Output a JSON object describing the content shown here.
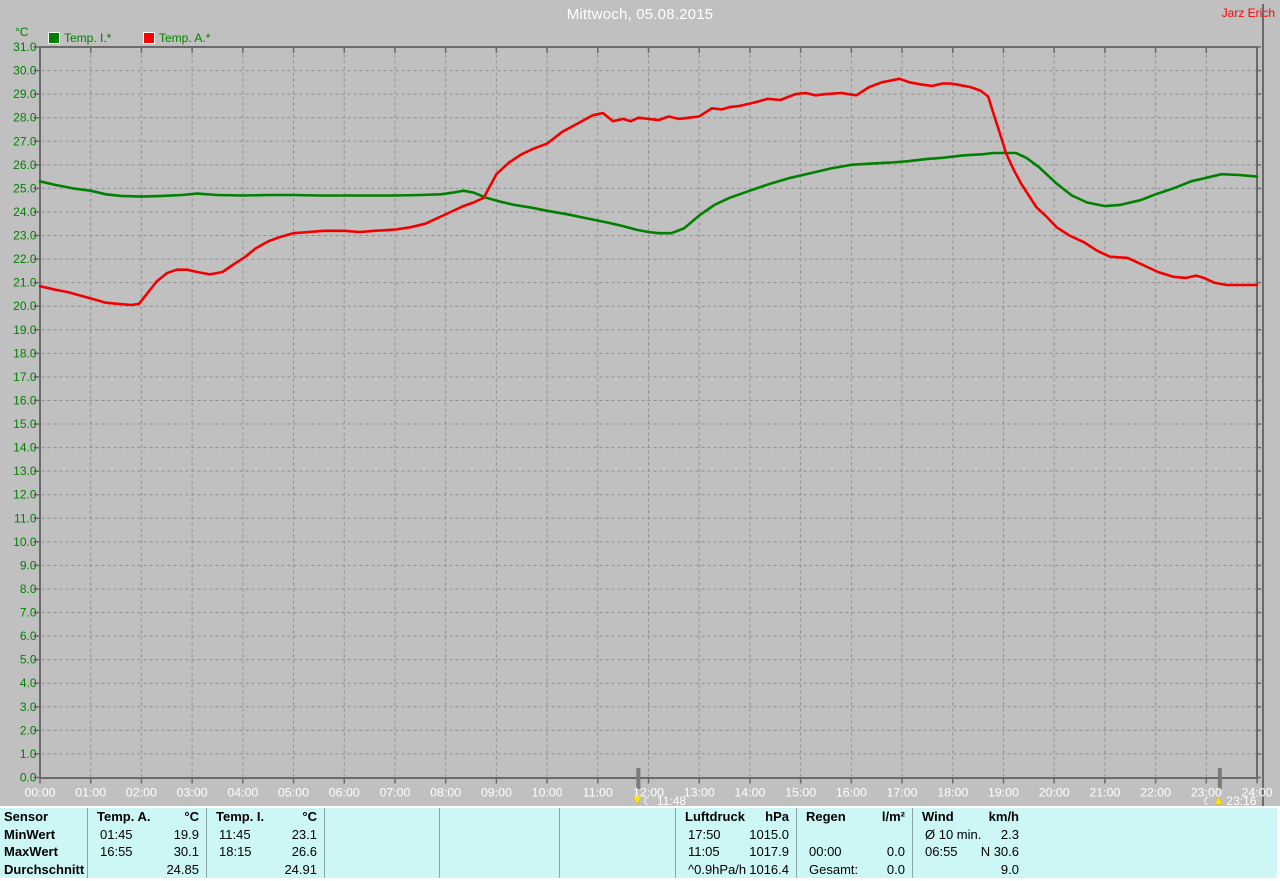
{
  "header": {
    "title": "Mittwoch, 05.08.2015",
    "author": "Jarz Erich"
  },
  "legend": {
    "unit": "°C",
    "items": [
      {
        "label": "Temp. I.*",
        "color": "#008000"
      },
      {
        "label": "Temp. A.*",
        "color": "#ff0000"
      }
    ]
  },
  "markers": [
    {
      "time": "11:48",
      "hour": 11.8,
      "icon": "moon-down"
    },
    {
      "time": "23:16",
      "hour": 23.267,
      "icon": "moon-up"
    }
  ],
  "colors": {
    "background": "#c0c0c0",
    "grid": "#8f8f8f",
    "frame": "#6a6a6a",
    "y_label": "#008000",
    "x_label": "#ffffff",
    "marker_bar": "#7a7a7a",
    "table_bg": "#cdf6f6",
    "table_divider": "#8aa4a4",
    "series_temp_i": "#008000",
    "series_temp_a": "#f20000",
    "marker_yellow": "#ffe400"
  },
  "chart_data": {
    "type": "line",
    "title": "Mittwoch, 05.08.2015",
    "ylabel": "°C",
    "ylim": [
      0.0,
      31.0
    ],
    "xlim_hours": [
      0,
      24
    ],
    "grid": true,
    "y_ticks": [
      0,
      1,
      2,
      3,
      4,
      5,
      6,
      7,
      8,
      9,
      10,
      11,
      12,
      13,
      14,
      15,
      16,
      17,
      18,
      19,
      20,
      21,
      22,
      23,
      24,
      25,
      26,
      27,
      28,
      29,
      30,
      31
    ],
    "y_tick_format_decimals": 1,
    "x_tick_labels": [
      "00:00",
      "01:00",
      "02:00",
      "03:00",
      "04:00",
      "05:00",
      "06:00",
      "07:00",
      "08:00",
      "09:00",
      "10:00",
      "11:00",
      "12:00",
      "13:00",
      "14:00",
      "15:00",
      "16:00",
      "17:00",
      "18:00",
      "19:00",
      "20:00",
      "21:00",
      "22:00",
      "23:00",
      "24:00"
    ],
    "series": [
      {
        "name": "Temp. I.*",
        "color": "#008000",
        "points": [
          [
            0,
            25.3
          ],
          [
            0.3,
            25.15
          ],
          [
            0.65,
            25.0
          ],
          [
            1,
            24.9
          ],
          [
            1.3,
            24.75
          ],
          [
            1.6,
            24.68
          ],
          [
            2,
            24.65
          ],
          [
            2.4,
            24.68
          ],
          [
            2.8,
            24.72
          ],
          [
            3.1,
            24.78
          ],
          [
            3.5,
            24.72
          ],
          [
            4,
            24.7
          ],
          [
            4.5,
            24.72
          ],
          [
            5,
            24.72
          ],
          [
            5.5,
            24.7
          ],
          [
            6,
            24.7
          ],
          [
            6.5,
            24.7
          ],
          [
            7,
            24.7
          ],
          [
            7.5,
            24.72
          ],
          [
            7.9,
            24.75
          ],
          [
            8.15,
            24.82
          ],
          [
            8.35,
            24.9
          ],
          [
            8.55,
            24.82
          ],
          [
            8.8,
            24.6
          ],
          [
            9.05,
            24.45
          ],
          [
            9.35,
            24.3
          ],
          [
            9.7,
            24.18
          ],
          [
            10,
            24.05
          ],
          [
            10.4,
            23.9
          ],
          [
            10.8,
            23.72
          ],
          [
            11.2,
            23.55
          ],
          [
            11.5,
            23.4
          ],
          [
            11.75,
            23.25
          ],
          [
            12,
            23.15
          ],
          [
            12.2,
            23.1
          ],
          [
            12.45,
            23.1
          ],
          [
            12.7,
            23.3
          ],
          [
            13,
            23.85
          ],
          [
            13.3,
            24.3
          ],
          [
            13.6,
            24.6
          ],
          [
            14,
            24.9
          ],
          [
            14.4,
            25.2
          ],
          [
            14.8,
            25.45
          ],
          [
            15.2,
            25.65
          ],
          [
            15.6,
            25.85
          ],
          [
            16,
            26.0
          ],
          [
            16.4,
            26.05
          ],
          [
            16.8,
            26.1
          ],
          [
            17.1,
            26.15
          ],
          [
            17.5,
            26.25
          ],
          [
            17.8,
            26.3
          ],
          [
            18.2,
            26.4
          ],
          [
            18.6,
            26.45
          ],
          [
            18.8,
            26.5
          ],
          [
            19,
            26.5
          ],
          [
            19.25,
            26.5
          ],
          [
            19.45,
            26.3
          ],
          [
            19.7,
            25.9
          ],
          [
            20.05,
            25.2
          ],
          [
            20.35,
            24.7
          ],
          [
            20.65,
            24.4
          ],
          [
            21,
            24.25
          ],
          [
            21.3,
            24.3
          ],
          [
            21.7,
            24.5
          ],
          [
            22,
            24.75
          ],
          [
            22.35,
            25.0
          ],
          [
            22.7,
            25.3
          ],
          [
            23,
            25.45
          ],
          [
            23.3,
            25.6
          ],
          [
            23.65,
            25.57
          ],
          [
            24,
            25.5
          ]
        ]
      },
      {
        "name": "Temp. A.*",
        "color": "#f20000",
        "points": [
          [
            0,
            20.85
          ],
          [
            0.3,
            20.7
          ],
          [
            0.55,
            20.6
          ],
          [
            0.8,
            20.45
          ],
          [
            1.05,
            20.3
          ],
          [
            1.3,
            20.15
          ],
          [
            1.55,
            20.1
          ],
          [
            1.8,
            20.05
          ],
          [
            1.95,
            20.1
          ],
          [
            2.1,
            20.5
          ],
          [
            2.3,
            21.05
          ],
          [
            2.5,
            21.4
          ],
          [
            2.7,
            21.55
          ],
          [
            2.9,
            21.55
          ],
          [
            3.1,
            21.45
          ],
          [
            3.35,
            21.35
          ],
          [
            3.6,
            21.45
          ],
          [
            3.8,
            21.75
          ],
          [
            4.05,
            22.1
          ],
          [
            4.25,
            22.45
          ],
          [
            4.5,
            22.75
          ],
          [
            4.75,
            22.95
          ],
          [
            5,
            23.1
          ],
          [
            5.3,
            23.15
          ],
          [
            5.6,
            23.2
          ],
          [
            6,
            23.2
          ],
          [
            6.3,
            23.15
          ],
          [
            6.6,
            23.2
          ],
          [
            7,
            23.25
          ],
          [
            7.3,
            23.35
          ],
          [
            7.6,
            23.5
          ],
          [
            7.85,
            23.75
          ],
          [
            8.1,
            24.0
          ],
          [
            8.35,
            24.25
          ],
          [
            8.55,
            24.4
          ],
          [
            8.75,
            24.6
          ],
          [
            9,
            25.6
          ],
          [
            9.25,
            26.1
          ],
          [
            9.5,
            26.45
          ],
          [
            9.75,
            26.7
          ],
          [
            10,
            26.9
          ],
          [
            10.3,
            27.4
          ],
          [
            10.6,
            27.75
          ],
          [
            10.9,
            28.1
          ],
          [
            11.1,
            28.2
          ],
          [
            11.3,
            27.85
          ],
          [
            11.5,
            27.95
          ],
          [
            11.65,
            27.85
          ],
          [
            11.8,
            28.0
          ],
          [
            12,
            27.95
          ],
          [
            12.2,
            27.9
          ],
          [
            12.4,
            28.05
          ],
          [
            12.6,
            27.95
          ],
          [
            12.8,
            28.0
          ],
          [
            13,
            28.05
          ],
          [
            13.25,
            28.4
          ],
          [
            13.45,
            28.35
          ],
          [
            13.6,
            28.45
          ],
          [
            13.8,
            28.5
          ],
          [
            14.1,
            28.65
          ],
          [
            14.35,
            28.8
          ],
          [
            14.6,
            28.75
          ],
          [
            14.9,
            29.0
          ],
          [
            15.1,
            29.05
          ],
          [
            15.3,
            28.95
          ],
          [
            15.5,
            29.0
          ],
          [
            15.8,
            29.05
          ],
          [
            16.1,
            28.95
          ],
          [
            16.35,
            29.3
          ],
          [
            16.6,
            29.5
          ],
          [
            16.95,
            29.65
          ],
          [
            17.15,
            29.5
          ],
          [
            17.4,
            29.4
          ],
          [
            17.6,
            29.35
          ],
          [
            17.8,
            29.45
          ],
          [
            17.95,
            29.45
          ],
          [
            18.1,
            29.4
          ],
          [
            18.35,
            29.3
          ],
          [
            18.55,
            29.15
          ],
          [
            18.7,
            28.9
          ],
          [
            18.8,
            28.2
          ],
          [
            18.95,
            27.2
          ],
          [
            19.05,
            26.5
          ],
          [
            19.2,
            25.8
          ],
          [
            19.35,
            25.2
          ],
          [
            19.5,
            24.7
          ],
          [
            19.65,
            24.2
          ],
          [
            19.85,
            23.8
          ],
          [
            20.05,
            23.35
          ],
          [
            20.3,
            23.0
          ],
          [
            20.6,
            22.7
          ],
          [
            20.85,
            22.35
          ],
          [
            21.1,
            22.1
          ],
          [
            21.45,
            22.05
          ],
          [
            21.7,
            21.8
          ],
          [
            22.05,
            21.45
          ],
          [
            22.35,
            21.25
          ],
          [
            22.6,
            21.2
          ],
          [
            22.8,
            21.3
          ],
          [
            22.95,
            21.2
          ],
          [
            23.15,
            21.0
          ],
          [
            23.4,
            20.9
          ],
          [
            23.7,
            20.9
          ],
          [
            24,
            20.9
          ]
        ]
      }
    ]
  },
  "table": {
    "row_labels": [
      "Sensor",
      "MinWert",
      "MaxWert",
      "Durchschnitt"
    ],
    "columns": [
      {
        "name": "temp-a",
        "header": [
          "Temp. A.",
          "°C"
        ],
        "rows": [
          [
            "01:45",
            "19.9"
          ],
          [
            "16:55",
            "30.1"
          ],
          [
            "",
            "24.85"
          ]
        ]
      },
      {
        "name": "temp-i",
        "header": [
          "Temp. I.",
          "°C"
        ],
        "rows": [
          [
            "11:45",
            "23.1"
          ],
          [
            "18:15",
            "26.6"
          ],
          [
            "",
            "24.91"
          ]
        ]
      },
      {
        "name": "empty-1",
        "header": [
          "",
          ""
        ],
        "rows": [
          [
            "",
            ""
          ],
          [
            "",
            ""
          ],
          [
            "",
            ""
          ]
        ]
      },
      {
        "name": "empty-2",
        "header": [
          "",
          ""
        ],
        "rows": [
          [
            "",
            ""
          ],
          [
            "",
            ""
          ],
          [
            "",
            ""
          ]
        ]
      },
      {
        "name": "empty-3",
        "header": [
          "",
          ""
        ],
        "rows": [
          [
            "",
            ""
          ],
          [
            "",
            ""
          ],
          [
            "",
            ""
          ]
        ]
      },
      {
        "name": "luftdruck",
        "header": [
          "Luftdruck",
          "hPa"
        ],
        "rows": [
          [
            "17:50",
            "1015.0"
          ],
          [
            "11:05",
            "1017.9"
          ],
          [
            "^0.9hPa/h",
            "1016.4"
          ]
        ]
      },
      {
        "name": "regen",
        "header": [
          "Regen",
          "l/m²"
        ],
        "rows": [
          [
            "",
            ""
          ],
          [
            "00:00",
            "0.0"
          ],
          [
            "Gesamt:",
            "0.0"
          ]
        ]
      },
      {
        "name": "wind",
        "header": [
          "Wind",
          "km/h"
        ],
        "rows": [
          [
            "Ø 10 min.",
            "2.3"
          ],
          [
            "06:55",
            "N 30.6"
          ],
          [
            "",
            "9.0"
          ]
        ]
      }
    ]
  }
}
